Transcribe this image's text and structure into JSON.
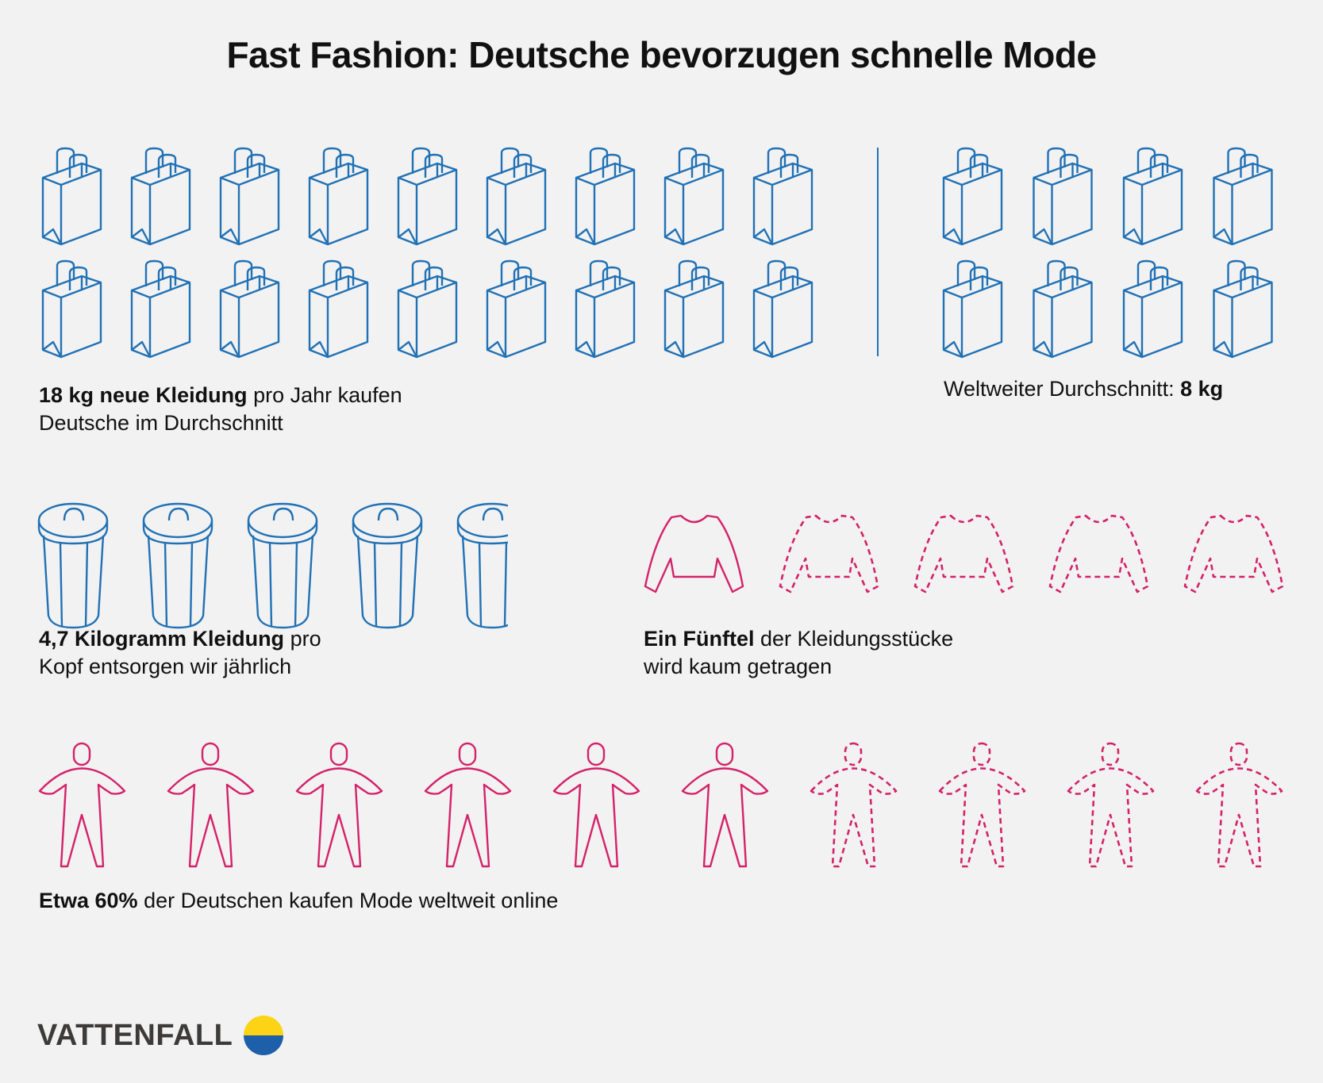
{
  "title": "Fast Fashion: Deutsche bevorzugen schnelle Mode",
  "colors": {
    "background": "#f2f2f2",
    "blue": "#2171b5",
    "pink": "#d4226a",
    "logo_yellow": "#fcd315",
    "logo_blue": "#1d5fa8"
  },
  "bags": {
    "germany": {
      "count": 18,
      "icon": "shopping-bag-icon",
      "bold": "18 kg neue Kleidung",
      "rest": " pro Jahr kaufen",
      "line2": "Deutsche im Durchschnitt"
    },
    "world": {
      "count": 8,
      "icon": "shopping-bag-icon",
      "label": "Weltweiter Durchschnitt: ",
      "bold": "8 kg"
    }
  },
  "trash": {
    "count": 4.7,
    "icon": "trash-can-icon",
    "bold": "4,7 Kilogramm Kleidung",
    "rest": " pro",
    "line2": "Kopf entsorgen wir jährlich"
  },
  "sweaters": {
    "total": 5,
    "highlighted": 1,
    "icon": "sweater-icon",
    "bold": "Ein Fünftel",
    "rest": " der Kleidungsstücke",
    "line2": "wird kaum getragen"
  },
  "people": {
    "total": 10,
    "highlighted": 6,
    "icon": "person-icon",
    "bold": "Etwa 60%",
    "rest": " der Deutschen kaufen Mode weltweit online"
  },
  "logo": {
    "text": "VATTENFALL"
  }
}
